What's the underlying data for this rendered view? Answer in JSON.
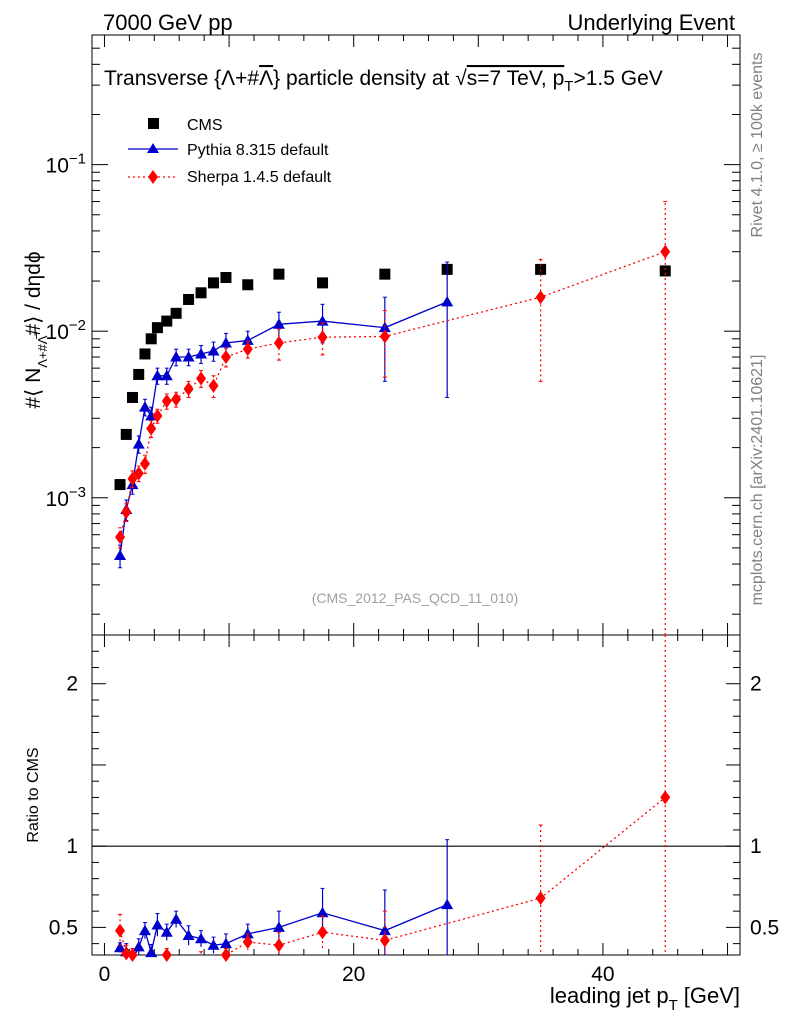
{
  "header": {
    "energy_label": "7000 GeV pp",
    "process_label": "Underlying Event"
  },
  "side_labels": {
    "rivet": "Rivet 4.1.0, ≥ 100k events",
    "mcplots": "mcplots.cern.ch [arXiv:2401.10621]"
  },
  "chart_data": {
    "type": "line",
    "title": "Transverse {Λ+#Λ̅} particle density at √s=7 TeV, p_T>1.5 GeV",
    "title_parts": [
      "Transverse {Λ+#",
      "Λ",
      "} particle density at ",
      "√",
      "s=7 TeV, p",
      "T",
      ">1.5 GeV"
    ],
    "ylabel_parts": [
      "#⟨ N",
      "Λ+#Λ̅",
      "#⟩ / dηdϕ"
    ],
    "xlabel": "leading jet p",
    "xlabel_sub": "T",
    "xlabel_unit": "[GeV]",
    "analysis_id": "(CMS_2012_PAS_QCD_11_010)",
    "ratio_ylabel": "Ratio to CMS",
    "xlim": [
      -1,
      51
    ],
    "ylim_log": [
      0.00015,
      0.6
    ],
    "ratio_ylim": [
      0.33,
      2.3
    ],
    "x_ticks": [
      0,
      20,
      40
    ],
    "y_ticks": [
      {
        "value": 0.001,
        "base": "10",
        "exp": "−3"
      },
      {
        "value": 0.01,
        "base": "10",
        "exp": "−2"
      },
      {
        "value": 0.1,
        "base": "10",
        "exp": "−1"
      }
    ],
    "ratio_ticks": [
      {
        "value": 0.5,
        "label": "0.5"
      },
      {
        "value": 1,
        "label": "1"
      },
      {
        "value": 2,
        "label": "2"
      }
    ],
    "series": [
      {
        "name": "CMS",
        "marker": "square",
        "color": "#000000",
        "x": [
          1.25,
          1.75,
          2.25,
          2.75,
          3.25,
          3.75,
          4.25,
          5.0,
          5.75,
          6.75,
          7.75,
          8.75,
          9.75,
          11.5,
          14.0,
          17.5,
          22.5,
          27.5,
          35.0,
          45.0
        ],
        "y": [
          0.0012,
          0.0024,
          0.004,
          0.0055,
          0.0073,
          0.009,
          0.0105,
          0.0115,
          0.0128,
          0.0155,
          0.017,
          0.0195,
          0.021,
          0.019,
          0.022,
          0.0195,
          0.022,
          0.0235,
          0.0235,
          0.023
        ]
      },
      {
        "name": "Pythia 8.315 default",
        "marker": "triangle",
        "color": "#0000cc",
        "line": "solid",
        "x": [
          1.25,
          1.75,
          2.25,
          2.75,
          3.25,
          3.75,
          4.25,
          5.0,
          5.75,
          6.75,
          7.75,
          8.75,
          9.75,
          11.5,
          14.0,
          17.5,
          22.5,
          27.5
        ],
        "y": [
          0.00045,
          0.00085,
          0.0012,
          0.0021,
          0.0035,
          0.0031,
          0.0054,
          0.0054,
          0.007,
          0.007,
          0.0073,
          0.0076,
          0.0085,
          0.0088,
          0.011,
          0.0115,
          0.0105,
          0.015
        ],
        "err": [
          7e-05,
          0.00012,
          0.00015,
          0.00025,
          0.0004,
          0.0004,
          0.0006,
          0.0006,
          0.0008,
          0.0008,
          0.0009,
          0.001,
          0.0012,
          0.0012,
          0.002,
          0.003,
          0.0055,
          0.011
        ],
        "ratio": [
          0.375,
          0.35,
          0.3,
          0.38,
          0.48,
          0.345,
          0.515,
          0.47,
          0.55,
          0.45,
          0.43,
          0.39,
          0.4,
          0.46,
          0.5,
          0.59,
          0.48,
          0.64
        ],
        "ratio_err": [
          0.03,
          0.05,
          0.04,
          0.05,
          0.05,
          0.05,
          0.07,
          0.05,
          0.05,
          0.06,
          0.05,
          0.05,
          0.06,
          0.06,
          0.1,
          0.15,
          0.25,
          0.4
        ]
      },
      {
        "name": "Sherpa 1.4.5 default",
        "marker": "diamond",
        "color": "#ff0000",
        "line": "dotted",
        "x": [
          1.25,
          1.75,
          2.25,
          2.75,
          3.25,
          3.75,
          4.25,
          5.0,
          5.75,
          6.75,
          7.75,
          8.75,
          9.75,
          11.5,
          14.0,
          17.5,
          22.5,
          35.0,
          45.0
        ],
        "y": [
          0.00058,
          0.00082,
          0.0013,
          0.0014,
          0.0016,
          0.0026,
          0.0031,
          0.0038,
          0.0039,
          0.0045,
          0.0052,
          0.0047,
          0.007,
          0.0078,
          0.0085,
          0.0092,
          0.0093,
          0.016,
          0.03
        ],
        "err": [
          8e-05,
          0.0001,
          0.00015,
          0.00015,
          0.0002,
          0.0003,
          0.0003,
          0.0004,
          0.0004,
          0.0005,
          0.0006,
          0.0007,
          0.0009,
          0.0009,
          0.0018,
          0.002,
          0.004,
          0.011,
          0.03
        ],
        "ratio": [
          0.48,
          0.34,
          0.33,
          0.26,
          0.22,
          0.29,
          0.3,
          0.33,
          0.3,
          0.29,
          0.31,
          0.24,
          0.33,
          0.41,
          0.39,
          0.47,
          0.42,
          0.68,
          1.3
        ],
        "ratio_err": [
          0.1,
          0.05,
          0.04,
          0.03,
          0.03,
          0.03,
          0.03,
          0.04,
          0.03,
          0.04,
          0.04,
          0.04,
          0.04,
          0.05,
          0.08,
          0.1,
          0.18,
          0.45,
          1.3
        ]
      }
    ]
  }
}
